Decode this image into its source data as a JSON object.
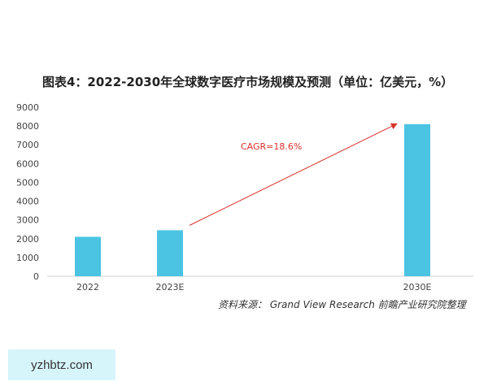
{
  "chart_data": {
    "type": "bar",
    "title": "图表4：2022-2030年全球数字医疗市场规模及预测（单位：亿美元，%）",
    "categories": [
      "2022",
      "2023E",
      "2030E"
    ],
    "values": [
      2100,
      2450,
      8100
    ],
    "ylim": [
      0,
      9000
    ],
    "yticks": [
      0,
      1000,
      2000,
      3000,
      4000,
      5000,
      6000,
      7000,
      8000,
      9000
    ],
    "bar_color": "#4bc3e3",
    "grid": false,
    "annotation": {
      "text": "CAGR=18.6%",
      "color": "#d9322b",
      "from_category": "2023E",
      "to_category": "2030E"
    }
  },
  "source": "资料来源： Grand View Research 前瞻产业研究院整理",
  "watermark": "yzhbtz.com"
}
